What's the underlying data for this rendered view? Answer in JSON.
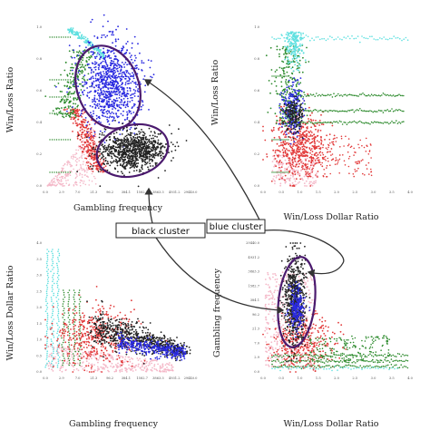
{
  "palette": {
    "pink": "#f4b8c8",
    "red": "#e23a3a",
    "green": "#2e8b2e",
    "blue": "#2a2ae0",
    "black": "#222222",
    "cyan": "#5fe0e0",
    "ellipse": "#4b1a6e",
    "arrow": "#333333"
  },
  "annotations": {
    "black_cluster": "black cluster",
    "blue_cluster": "blue cluster"
  },
  "chart_data": [
    {
      "type": "scatter",
      "panel": "top-left",
      "xlabel": "Gambling frequency",
      "ylabel": "Win/Loss Ratio",
      "xticks": [
        "0.0",
        "2.9",
        "7.0",
        "21.3",
        "96.2",
        "384.1",
        "1582.7",
        "3863.3",
        "4931.2",
        "29440.0"
      ],
      "yticks": [
        "0.0",
        "0.2",
        "0.4",
        "0.6",
        "0.8",
        "1.0"
      ],
      "series": [
        {
          "color": "pink",
          "values": [
            [
              0.1,
              0.02
            ],
            [
              0.3,
              0.06
            ],
            [
              0.6,
              0.1
            ],
            [
              1.2,
              0.14
            ],
            [
              2.0,
              0.04
            ],
            [
              2.4,
              0.18
            ],
            [
              3.0,
              0.08
            ]
          ]
        },
        {
          "color": "red",
          "values": [
            [
              2.6,
              0.22
            ],
            [
              2.8,
              0.3
            ],
            [
              3.0,
              0.36
            ],
            [
              2.9,
              0.26
            ],
            [
              3.1,
              0.33
            ]
          ]
        },
        {
          "color": "green",
          "values": [
            [
              2.5,
              0.45
            ],
            [
              2.8,
              0.55
            ],
            [
              3.0,
              0.6
            ],
            [
              2.7,
              0.5
            ]
          ]
        },
        {
          "color": "blue",
          "values": [
            [
              3.5,
              0.55
            ],
            [
              4.0,
              0.65
            ],
            [
              4.5,
              0.7
            ],
            [
              5.0,
              0.6
            ],
            [
              4.2,
              0.75
            ]
          ]
        },
        {
          "color": "black",
          "values": [
            [
              4.0,
              0.2
            ],
            [
              4.5,
              0.22
            ],
            [
              5.0,
              0.25
            ],
            [
              5.5,
              0.2
            ]
          ]
        },
        {
          "color": "cyan",
          "values": [
            [
              1.0,
              0.95
            ],
            [
              1.5,
              0.98
            ],
            [
              2.0,
              0.9
            ],
            [
              0.5,
              0.97
            ]
          ]
        }
      ]
    },
    {
      "type": "scatter",
      "panel": "top-right",
      "xlabel": "Win/Loss Dollar Ratio",
      "ylabel": "Win/Loss Ratio",
      "xticks": [
        "0.0",
        "0.5",
        "1.0",
        "1.5",
        "2.0",
        "2.5",
        "3.0",
        "3.5",
        "4.0"
      ],
      "yticks": [
        "0.0",
        "0.2",
        "0.4",
        "0.6",
        "0.8",
        "1.0"
      ],
      "series": [
        {
          "color": "pink",
          "values": [
            [
              0.1,
              0.05
            ],
            [
              0.3,
              0.1
            ],
            [
              0.6,
              0.02
            ]
          ]
        },
        {
          "color": "red",
          "values": [
            [
              0.6,
              0.3
            ],
            [
              0.8,
              0.35
            ],
            [
              1.0,
              0.3
            ]
          ]
        },
        {
          "color": "green",
          "values": [
            [
              0.7,
              0.55
            ],
            [
              1.0,
              0.6
            ],
            [
              1.5,
              0.55
            ]
          ]
        },
        {
          "color": "blue",
          "values": [
            [
              0.6,
              0.45
            ],
            [
              0.7,
              0.5
            ]
          ]
        },
        {
          "color": "black",
          "values": [
            [
              0.6,
              0.42
            ],
            [
              0.8,
              0.4
            ]
          ]
        },
        {
          "color": "cyan",
          "values": [
            [
              0.5,
              0.9
            ],
            [
              0.7,
              0.95
            ],
            [
              1.0,
              0.98
            ]
          ]
        }
      ]
    },
    {
      "type": "scatter",
      "panel": "bottom-left",
      "xlabel": "Gambling frequency",
      "ylabel": "Win/Loss Dollar Ratio",
      "xticks": [
        "0.0",
        "2.9",
        "7.0",
        "21.3",
        "96.2",
        "384.1",
        "1582.7",
        "3863.3",
        "4931.2",
        "29440.0"
      ],
      "yticks": [
        "0.0",
        "0.5",
        "1.0",
        "1.5",
        "2.0",
        "2.5",
        "3.0",
        "3.5",
        "4.0"
      ],
      "series": [
        {
          "color": "pink",
          "values": [
            [
              0.5,
              0.2
            ],
            [
              1.5,
              0.3
            ],
            [
              2.5,
              0.1
            ]
          ]
        },
        {
          "color": "red",
          "values": [
            [
              2.5,
              0.8
            ],
            [
              3.0,
              1.0
            ],
            [
              3.5,
              0.9
            ]
          ]
        },
        {
          "color": "green",
          "values": [
            [
              2.0,
              1.2
            ],
            [
              2.5,
              1.4
            ]
          ]
        },
        {
          "color": "blue",
          "values": [
            [
              5.5,
              0.6
            ],
            [
              6.5,
              0.7
            ],
            [
              7.5,
              0.5
            ]
          ]
        },
        {
          "color": "black",
          "values": [
            [
              4.5,
              0.7
            ],
            [
              5.5,
              0.9
            ],
            [
              6.5,
              0.6
            ]
          ]
        },
        {
          "color": "cyan",
          "values": [
            [
              0.2,
              3.5
            ],
            [
              0.3,
              3.8
            ],
            [
              0.1,
              3.0
            ]
          ]
        }
      ]
    },
    {
      "type": "scatter",
      "panel": "bottom-right",
      "xlabel": "Win/Loss Dollar Ratio",
      "ylabel": "Gambling frequency",
      "xticks": [
        "0.0",
        "0.5",
        "1.0",
        "1.5",
        "2.0",
        "2.5",
        "3.0",
        "3.5",
        "4.0"
      ],
      "yticks": [
        "0.0",
        "2.9",
        "7.0",
        "21.3",
        "96.2",
        "384.1",
        "1582.7",
        "3863.3",
        "4931.2",
        "29440.0"
      ],
      "series": [
        {
          "color": "pink",
          "values": [
            [
              0.2,
              0.5
            ],
            [
              0.5,
              1.5
            ],
            [
              1.0,
              1.0
            ]
          ]
        },
        {
          "color": "red",
          "values": [
            [
              0.7,
              2.5
            ],
            [
              1.0,
              3.0
            ],
            [
              1.5,
              2.0
            ]
          ]
        },
        {
          "color": "green",
          "values": [
            [
              1.5,
              1.0
            ],
            [
              2.0,
              0.8
            ],
            [
              2.5,
              0.6
            ]
          ]
        },
        {
          "color": "blue",
          "values": [
            [
              0.6,
              5.0
            ],
            [
              0.7,
              6.0
            ]
          ]
        },
        {
          "color": "black",
          "values": [
            [
              0.5,
              6.0
            ],
            [
              0.6,
              7.0
            ],
            [
              0.7,
              5.5
            ]
          ]
        },
        {
          "color": "cyan",
          "values": [
            [
              0.6,
              0.2
            ],
            [
              1.0,
              0.2
            ]
          ]
        }
      ]
    }
  ]
}
